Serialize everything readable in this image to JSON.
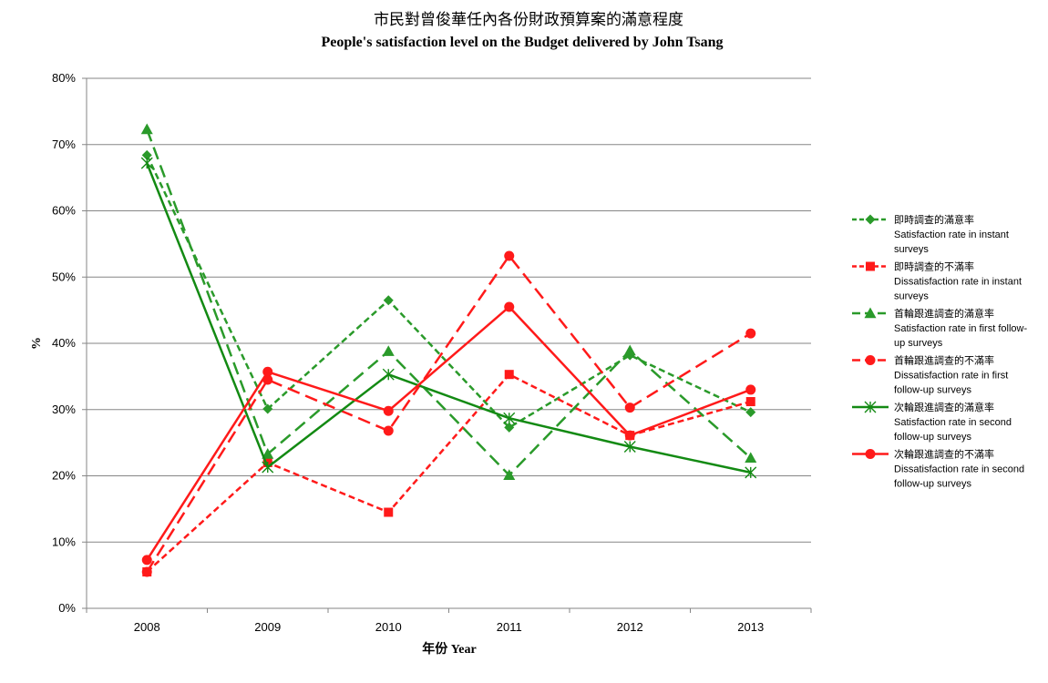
{
  "chart_data": {
    "type": "line",
    "title": "市民對曾俊華任內各份財政預算案的滿意程度",
    "subtitle": "People's satisfaction level on the Budget delivered by John Tsang",
    "xlabel": "年份 Year",
    "ylabel": "%",
    "ylim": [
      0,
      80
    ],
    "yticks": [
      0,
      10,
      20,
      30,
      40,
      50,
      60,
      70,
      80
    ],
    "ytick_labels": [
      "0%",
      "10%",
      "20%",
      "30%",
      "40%",
      "50%",
      "60%",
      "70%",
      "80%"
    ],
    "categories": [
      "2008",
      "2009",
      "2010",
      "2011",
      "2012",
      "2013"
    ],
    "grid": "horizontal",
    "legend_position": "right",
    "series": [
      {
        "name": "即時調查的滿意率",
        "name_en_lines": [
          "Satisfaction rate in instant",
          "surveys"
        ],
        "color": "#2a9a2a",
        "dash": "dashed-short",
        "marker": "diamond",
        "values": [
          68.4,
          30.1,
          46.5,
          27.3,
          38.2,
          29.6
        ]
      },
      {
        "name": "即時調查的不滿率",
        "name_en_lines": [
          "Dissatisfaction rate in instant",
          "surveys"
        ],
        "color": "#ff1a1a",
        "dash": "dashed-short",
        "marker": "square",
        "values": [
          5.5,
          22.0,
          14.5,
          35.3,
          26.1,
          31.2
        ]
      },
      {
        "name": "首輪跟進調查的滿意率",
        "name_en_lines": [
          "Satisfaction rate in first follow-",
          "up surveys"
        ],
        "color": "#2a9a2a",
        "dash": "dashed-long",
        "marker": "triangle",
        "values": [
          72.3,
          23.3,
          38.8,
          20.1,
          38.9,
          22.7
        ]
      },
      {
        "name": "首輪跟進調查的不滿率",
        "name_en_lines": [
          "Dissatisfaction rate in first",
          "follow-up surveys"
        ],
        "color": "#ff1a1a",
        "dash": "dashed-long",
        "marker": "circle",
        "values": [
          5.5,
          34.5,
          26.8,
          53.2,
          30.3,
          41.5
        ]
      },
      {
        "name": "次輪跟進調查的滿意率",
        "name_en_lines": [
          "Satisfaction rate in second",
          "follow-up surveys"
        ],
        "color": "#138a13",
        "dash": "solid",
        "marker": "star",
        "values": [
          67.2,
          21.3,
          35.3,
          28.7,
          24.4,
          20.5
        ]
      },
      {
        "name": "次輪跟進調查的不滿率",
        "name_en_lines": [
          "Dissatisfaction rate in second",
          "follow-up surveys"
        ],
        "color": "#ff1a1a",
        "dash": "solid",
        "marker": "circle",
        "values": [
          7.3,
          35.7,
          29.8,
          45.5,
          26.1,
          33.0
        ]
      }
    ]
  }
}
